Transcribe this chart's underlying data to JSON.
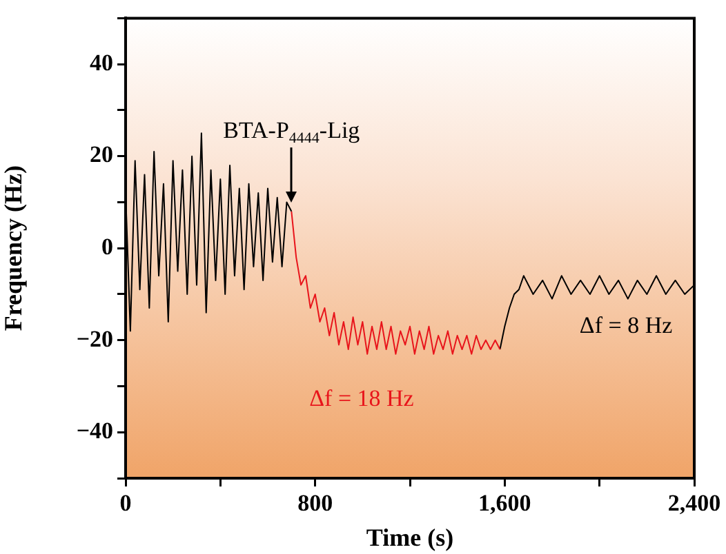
{
  "chart_data": {
    "type": "line",
    "xlabel": "Time (s)",
    "ylabel": "Frequency (Hz)",
    "xlim": [
      0,
      2400
    ],
    "ylim": [
      -50,
      50
    ],
    "xticks": [
      0,
      {
        "value": 400,
        "label": null
      },
      800,
      {
        "value": 1200,
        "label": null
      },
      {
        "value": 1600,
        "label": "1,600"
      },
      {
        "value": 2000,
        "label": null
      },
      {
        "value": 2400,
        "label": "2,400"
      }
    ],
    "yticks": [
      {
        "value": -50,
        "label": null
      },
      -40,
      {
        "value": -30,
        "label": null
      },
      -20,
      {
        "value": -10,
        "label": null
      },
      0,
      {
        "value": 10,
        "label": null
      },
      20,
      {
        "value": 30,
        "label": null
      },
      40,
      {
        "value": 50,
        "label": null
      }
    ],
    "grid": false,
    "legend": false,
    "marker": "none",
    "line_style": "solid",
    "series": [
      {
        "color": "#000000",
        "x": [
          0,
          20,
          40,
          60,
          80,
          100,
          120,
          140,
          160,
          180,
          200,
          220,
          240,
          260,
          280,
          300,
          320,
          340,
          360,
          380,
          400,
          420,
          440,
          460,
          480,
          500,
          520,
          540,
          560,
          580,
          600,
          620,
          640,
          660,
          680,
          700
        ],
        "values": [
          12,
          -18,
          19,
          -9,
          16,
          -13,
          21,
          -6,
          14,
          -16,
          19,
          -5,
          17,
          -10,
          20,
          -8,
          25,
          -14,
          17,
          -7,
          15,
          -10,
          18,
          -6,
          13,
          -9,
          14,
          -4,
          12,
          -7,
          13,
          -3,
          11,
          -4,
          10,
          8
        ]
      },
      {
        "color": "#e8141b",
        "x": [
          700,
          720,
          740,
          760,
          780,
          800,
          820,
          840,
          860,
          880,
          900,
          920,
          940,
          960,
          980,
          1000,
          1020,
          1040,
          1060,
          1080,
          1100,
          1120,
          1140,
          1160,
          1180,
          1200,
          1220,
          1240,
          1260,
          1280,
          1300,
          1320,
          1340,
          1360,
          1380,
          1400,
          1420,
          1440,
          1460,
          1480,
          1500,
          1520,
          1540,
          1560,
          1580
        ],
        "values": [
          8,
          -2,
          -8,
          -6,
          -13,
          -10,
          -16,
          -13,
          -19,
          -14,
          -21,
          -16,
          -22,
          -15,
          -21,
          -16,
          -23,
          -17,
          -22,
          -16,
          -22,
          -17,
          -23,
          -18,
          -21,
          -17,
          -23,
          -18,
          -22,
          -17,
          -23,
          -19,
          -22,
          -18,
          -23,
          -19,
          -22,
          -19,
          -23,
          -19,
          -22,
          -20,
          -22,
          -20,
          -22
        ]
      },
      {
        "color": "#000000",
        "x": [
          1580,
          1600,
          1620,
          1640,
          1660,
          1680,
          1720,
          1760,
          1800,
          1840,
          1880,
          1920,
          1960,
          2000,
          2040,
          2080,
          2120,
          2160,
          2200,
          2240,
          2280,
          2320,
          2360,
          2400
        ],
        "values": [
          -22,
          -17,
          -13,
          -10,
          -9,
          -6,
          -10,
          -7,
          -11,
          -6,
          -10,
          -7,
          -10,
          -6,
          -10,
          -7,
          -11,
          -7,
          -10,
          -6,
          -10,
          -7,
          -10,
          -8
        ]
      }
    ],
    "annotations": [
      {
        "text": "BTA-P$_{4444}$-Lig",
        "x": 700,
        "y": 8
      },
      "Δf = 18 Hz",
      "Δf = 8 Hz"
    ]
  }
}
